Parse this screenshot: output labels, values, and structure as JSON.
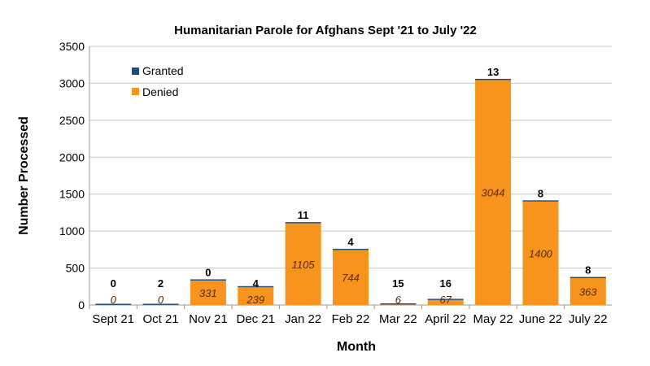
{
  "chart_data": {
    "type": "bar",
    "stacked": true,
    "title": "Humanitarian Parole for Afghans Sept '21 to July '22",
    "xlabel": "Month",
    "ylabel": "Number Processed",
    "ylim": [
      0,
      3500
    ],
    "yticks": [
      0,
      500,
      1000,
      1500,
      2000,
      2500,
      3000,
      3500
    ],
    "grid": true,
    "legend_position": "top-left",
    "categories": [
      "Sept 21",
      "Oct 21",
      "Nov 21",
      "Dec 21",
      "Jan 22",
      "Feb 22",
      "Mar 22",
      "April 22",
      "May 22",
      "June 22",
      "July 22"
    ],
    "series": [
      {
        "name": "Denied",
        "color": "#F7941D",
        "values": [
          0,
          0,
          331,
          239,
          1105,
          744,
          6,
          67,
          3044,
          1400,
          363
        ]
      },
      {
        "name": "Granted",
        "color": "#1F4E79",
        "values": [
          0,
          2,
          0,
          4,
          11,
          4,
          15,
          16,
          13,
          8,
          8
        ]
      }
    ],
    "legend": [
      "Granted",
      "Denied"
    ]
  }
}
